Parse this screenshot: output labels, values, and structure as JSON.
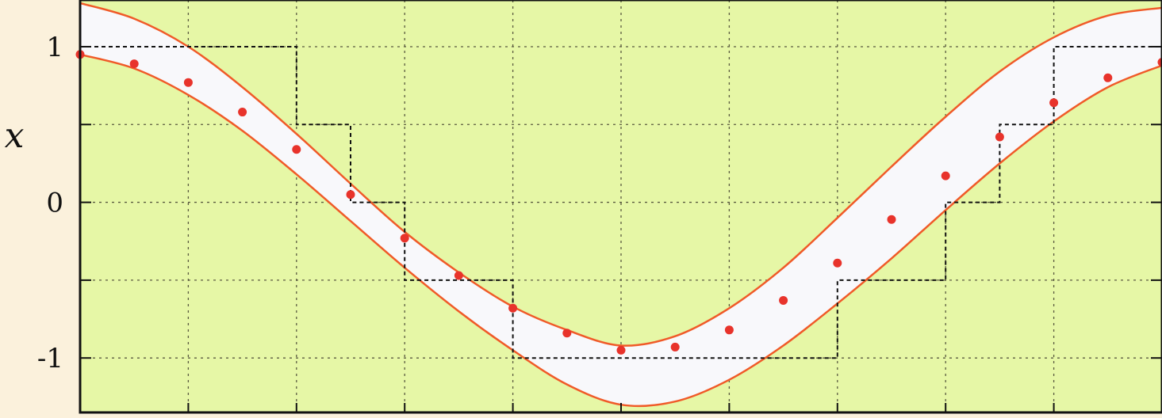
{
  "chart_data": {
    "type": "scatter",
    "title": "",
    "xlabel": "",
    "ylabel": "x",
    "xlim": [
      0,
      10
    ],
    "ylim": [
      -1.35,
      1.3
    ],
    "x_ticks": [
      0,
      1,
      2,
      3,
      4,
      5,
      6,
      7,
      8,
      9,
      10
    ],
    "y_ticks": [
      {
        "value": 1,
        "label": "1"
      },
      {
        "value": 0.5,
        "label": ""
      },
      {
        "value": 0,
        "label": "0"
      },
      {
        "value": -0.5,
        "label": ""
      },
      {
        "value": -1,
        "label": "-1"
      }
    ],
    "grid": true,
    "series": [
      {
        "kind": "points",
        "x": [
          0,
          0.5,
          1,
          1.5,
          2,
          2.5,
          3,
          3.5,
          4,
          4.5,
          5,
          5.5,
          6,
          6.5,
          7,
          7.5,
          8,
          8.5,
          9,
          9.5,
          10
        ],
        "y": [
          0.95,
          0.89,
          0.77,
          0.58,
          0.34,
          0.05,
          -0.23,
          -0.47,
          -0.68,
          -0.84,
          -0.95,
          -0.93,
          -0.82,
          -0.63,
          -0.39,
          -0.11,
          0.17,
          0.42,
          0.64,
          0.8,
          0.9
        ]
      },
      {
        "kind": "upper-bound",
        "x": [
          0,
          0.5,
          1,
          1.5,
          2,
          2.5,
          3,
          3.5,
          4,
          4.5,
          5,
          5.5,
          6,
          6.5,
          7,
          7.5,
          8,
          8.5,
          9,
          9.5,
          10
        ],
        "y": [
          1.28,
          1.18,
          1.0,
          0.74,
          0.44,
          0.12,
          -0.19,
          -0.45,
          -0.67,
          -0.82,
          -0.92,
          -0.86,
          -0.68,
          -0.42,
          -0.1,
          0.23,
          0.55,
          0.84,
          1.06,
          1.2,
          1.25
        ]
      },
      {
        "kind": "lower-bound",
        "x": [
          0,
          0.5,
          1,
          1.5,
          2,
          2.5,
          3,
          3.5,
          4,
          4.5,
          5,
          5.5,
          6,
          6.5,
          7,
          7.5,
          8,
          8.5,
          9,
          9.5,
          10
        ],
        "y": [
          0.95,
          0.86,
          0.69,
          0.46,
          0.18,
          -0.12,
          -0.42,
          -0.7,
          -0.95,
          -1.17,
          -1.3,
          -1.28,
          -1.14,
          -0.92,
          -0.65,
          -0.36,
          -0.05,
          0.25,
          0.52,
          0.74,
          0.88
        ]
      }
    ],
    "staircase": {
      "x": [
        0,
        1,
        2,
        2.5,
        3,
        4,
        5,
        6,
        7,
        8,
        8.5,
        9,
        10
      ],
      "y": [
        1,
        1,
        0.5,
        0,
        -0.5,
        -1,
        -1,
        -1,
        -0.5,
        0,
        0.5,
        1,
        1
      ]
    }
  },
  "colors": {
    "plot_background": "#e6f7a6",
    "band_fill": "#f8f8fb",
    "band_edge": "#f05a28",
    "points": "#e8332b",
    "grid": "#5a5a40",
    "frame": "#111111",
    "page_background": "#fbf1dc"
  }
}
